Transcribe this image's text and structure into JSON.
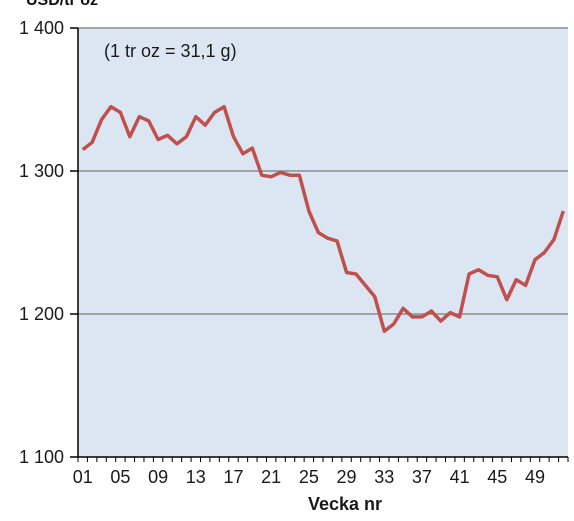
{
  "header_text": "USD/tr oz",
  "chart_data": {
    "type": "line",
    "annotation": "(1 tr oz = 31,1 g)",
    "xlabel": "Vecka nr",
    "ylabel": "",
    "ylim": [
      1100,
      1400
    ],
    "yticks": [
      1100,
      1200,
      1300,
      1400
    ],
    "ytick_labels": [
      "1 100",
      "1 200",
      "1 300",
      "1 400"
    ],
    "xlim": [
      1,
      52
    ],
    "xticks": [
      1,
      5,
      9,
      13,
      17,
      21,
      25,
      29,
      33,
      37,
      41,
      45,
      49
    ],
    "xtick_labels": [
      "01",
      "05",
      "09",
      "13",
      "17",
      "21",
      "25",
      "29",
      "33",
      "37",
      "41",
      "45",
      "49"
    ],
    "grid": "horizontal",
    "colors": {
      "series": "#c0504d",
      "plot_bg": "#dce6f2",
      "grid": "#8c8c8c",
      "axis": "#000000"
    },
    "series": [
      {
        "x": [
          1,
          2,
          3,
          4,
          5,
          6,
          7,
          8,
          9,
          10,
          11,
          12,
          13,
          14,
          15,
          16,
          17,
          18,
          19,
          20,
          21,
          22,
          23,
          24,
          25,
          26,
          27,
          28,
          29,
          30,
          31,
          32,
          33,
          34,
          35,
          36,
          37,
          38,
          39,
          40,
          41,
          42,
          43,
          44,
          45,
          46,
          47,
          48,
          49,
          50,
          51,
          52
        ],
        "values": [
          1315,
          1320,
          1336,
          1345,
          1341,
          1324,
          1338,
          1335,
          1322,
          1325,
          1319,
          1324,
          1338,
          1332,
          1341,
          1345,
          1324,
          1312,
          1316,
          1297,
          1296,
          1299,
          1297,
          1297,
          1272,
          1257,
          1253,
          1251,
          1229,
          1228,
          1220,
          1212,
          1188,
          1193,
          1204,
          1198,
          1198,
          1202,
          1195,
          1201,
          1198,
          1228,
          1231,
          1227,
          1226,
          1210,
          1224,
          1220,
          1238,
          1243,
          1252,
          1272
        ]
      }
    ]
  }
}
